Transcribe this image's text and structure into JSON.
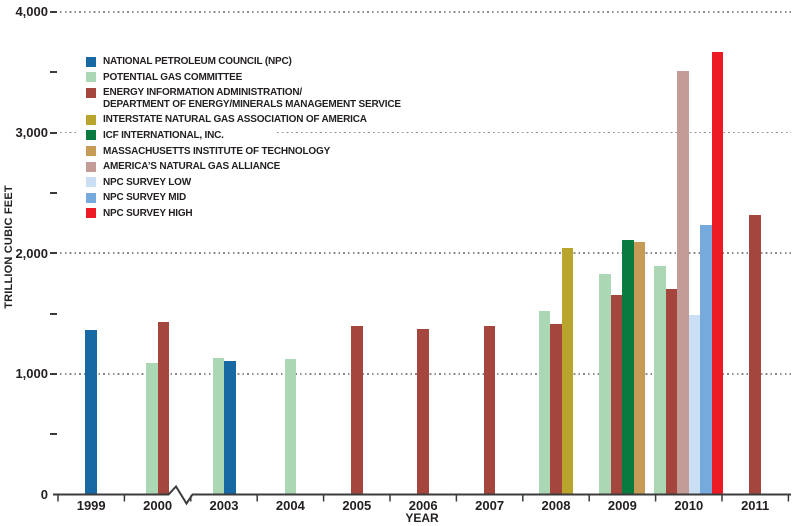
{
  "chart_data": {
    "type": "bar",
    "title": "",
    "ylabel": "TRILLION CUBIC FEET",
    "xlabel": "YEAR",
    "unit": "trillion cubic feet",
    "ylim": [
      0,
      4000
    ],
    "y_major_ticks": {
      "values": [
        0,
        1000,
        2000,
        3000,
        4000
      ],
      "labels": [
        "0",
        "1,000",
        "2,000",
        "3,000",
        "4,000"
      ]
    },
    "y_minor_ticks": [
      500,
      1500,
      2500,
      3500
    ],
    "grid": "horizontal dotted lines at major ticks",
    "x_axis_break_after": "2000",
    "legend_position": "upper-left",
    "legend": [
      {
        "key": "npc",
        "label": "NATIONAL PETROLEUM COUNCIL (NPC)",
        "color": "#1769A4"
      },
      {
        "key": "pgc",
        "label": "POTENTIAL GAS COMMITTEE",
        "color": "#ACD7B5"
      },
      {
        "key": "eia",
        "label": "ENERGY INFORMATION ADMINISTRATION/",
        "label_line2": "DEPARTMENT OF ENERGY/MINERALS MANAGEMENT SERVICE",
        "color": "#A5463E"
      },
      {
        "key": "ingaa",
        "label": "INTERSTATE NATURAL GAS ASSOCIATION OF AMERICA",
        "color": "#B9A42E"
      },
      {
        "key": "icf",
        "label": "ICF INTERNATIONAL, INC.",
        "color": "#0A7B40"
      },
      {
        "key": "mit",
        "label": "MASSACHUSETTS INSTITUTE OF TECHNOLOGY",
        "color": "#C59B55"
      },
      {
        "key": "anga",
        "label": "AMERICA’S NATURAL GAS ALLIANCE",
        "color": "#C39C97"
      },
      {
        "key": "npc_low",
        "label": "NPC SURVEY LOW",
        "color": "#CADFF3"
      },
      {
        "key": "npc_mid",
        "label": "NPC SURVEY MID",
        "color": "#76AADC"
      },
      {
        "key": "npc_high",
        "label": "NPC SURVEY HIGH",
        "color": "#EC1B23"
      }
    ],
    "categories": [
      "1999",
      "2000",
      "2003",
      "2004",
      "2005",
      "2006",
      "2007",
      "2008",
      "2009",
      "2010",
      "2011"
    ],
    "groups": [
      {
        "year": "1999",
        "bars": [
          {
            "org": "npc",
            "value": 1360
          }
        ]
      },
      {
        "year": "2000",
        "bars": [
          {
            "org": "pgc",
            "value": 1090
          },
          {
            "org": "eia",
            "value": 1430
          }
        ]
      },
      {
        "year": "2003",
        "bars": [
          {
            "org": "pgc",
            "value": 1130
          },
          {
            "org": "npc",
            "value": 1110
          }
        ]
      },
      {
        "year": "2004",
        "bars": [
          {
            "org": "pgc",
            "value": 1120
          }
        ]
      },
      {
        "year": "2005",
        "bars": [
          {
            "org": "eia",
            "value": 1400
          }
        ]
      },
      {
        "year": "2006",
        "bars": [
          {
            "org": "eia",
            "value": 1370
          }
        ]
      },
      {
        "year": "2007",
        "bars": [
          {
            "org": "eia",
            "value": 1400
          }
        ]
      },
      {
        "year": "2008",
        "bars": [
          {
            "org": "pgc",
            "value": 1520
          },
          {
            "org": "eia",
            "value": 1410
          },
          {
            "org": "ingaa",
            "value": 2040
          }
        ]
      },
      {
        "year": "2009",
        "bars": [
          {
            "org": "pgc",
            "value": 1830
          },
          {
            "org": "eia",
            "value": 1650
          },
          {
            "org": "icf",
            "value": 2110
          },
          {
            "org": "mit",
            "value": 2090
          }
        ]
      },
      {
        "year": "2010",
        "bars": [
          {
            "org": "pgc",
            "value": 1890
          },
          {
            "org": "eia",
            "value": 1700
          },
          {
            "org": "anga",
            "value": 3510
          },
          {
            "org": "npc_low",
            "value": 1490
          },
          {
            "org": "npc_mid",
            "value": 2230
          },
          {
            "org": "npc_high",
            "value": 3670
          }
        ]
      },
      {
        "year": "2011",
        "bars": [
          {
            "org": "eia",
            "value": 2320
          }
        ]
      }
    ]
  }
}
